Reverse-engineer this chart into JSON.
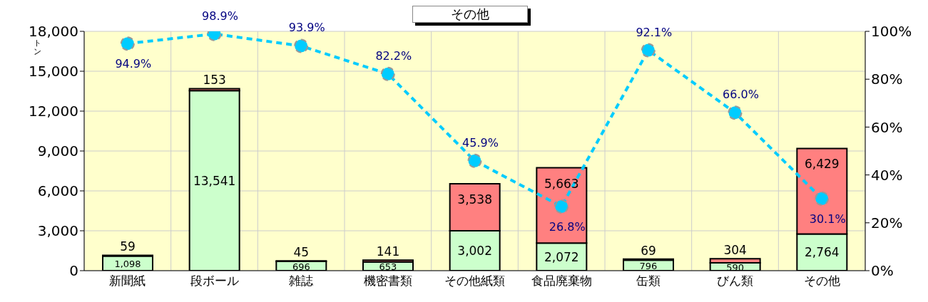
{
  "chart_data": {
    "type": "bar",
    "title": "その他",
    "ylabel": "トン",
    "stacked": true,
    "grid": true,
    "legend": false,
    "categories": [
      "新聞紙",
      "段ボール",
      "雑誌",
      "機密書類",
      "その他紙類",
      "食品廃棄物",
      "缶類",
      "びん類",
      "その他"
    ],
    "series": [
      {
        "color": "#ccffcc",
        "values": [
          1098,
          13541,
          696,
          653,
          3002,
          2072,
          796,
          590,
          2764
        ],
        "value_labels": [
          "1,098",
          "13,541",
          "696",
          "653",
          "3,002",
          "2,072",
          "796",
          "590",
          "2,764"
        ]
      },
      {
        "color": "#ff8080",
        "values": [
          59,
          153,
          45,
          141,
          3538,
          5663,
          69,
          304,
          6429
        ],
        "value_labels": [
          "59",
          "153",
          "45",
          "141",
          "3,538",
          "5,663",
          "69",
          "304",
          "6,429"
        ]
      },
      {
        "type": "line",
        "axis": "y2",
        "color": "#00ccff",
        "marker": "circle",
        "line_style": "dashed",
        "values": [
          94.9,
          98.9,
          93.9,
          82.2,
          45.9,
          26.8,
          92.1,
          66.0,
          30.1
        ],
        "value_labels": [
          "94.9%",
          "98.9%",
          "93.9%",
          "82.2%",
          "45.9%",
          "26.8%",
          "92.1%",
          "66.0%",
          "30.1%"
        ]
      }
    ],
    "ylim": [
      0,
      18000
    ],
    "yticks": [
      {
        "value": 0,
        "label": "0"
      },
      {
        "value": 3000,
        "label": "3,000"
      },
      {
        "value": 6000,
        "label": "6,000"
      },
      {
        "value": 9000,
        "label": "9,000"
      },
      {
        "value": 12000,
        "label": "12,000"
      },
      {
        "value": 15000,
        "label": "15,000"
      },
      {
        "value": 18000,
        "label": "18,000"
      }
    ],
    "y2lim": [
      0,
      100
    ],
    "y2ticks": [
      {
        "value": 0,
        "label": "0%"
      },
      {
        "value": 20,
        "label": "20%"
      },
      {
        "value": 40,
        "label": "40%"
      },
      {
        "value": 60,
        "label": "60%"
      },
      {
        "value": 80,
        "label": "80%"
      },
      {
        "value": 100,
        "label": "100%"
      }
    ]
  }
}
